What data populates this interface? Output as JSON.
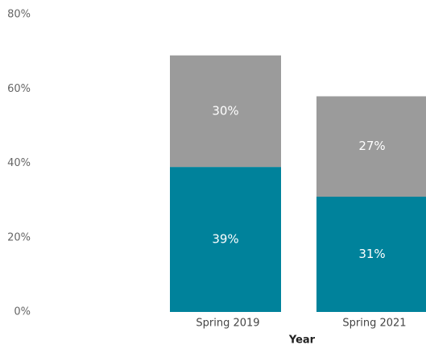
{
  "chart_data": {
    "type": "stacked_bar",
    "x_label": "Year",
    "categories": [
      "Spring 2019",
      "Spring 2021"
    ],
    "series": [
      {
        "color": "#00829b",
        "values": [
          39,
          31
        ],
        "value_labels": [
          "39%",
          "31%"
        ]
      },
      {
        "color": "#9b9b9b",
        "values": [
          30,
          27
        ],
        "value_labels": [
          "30%",
          "27%"
        ]
      }
    ],
    "ylim": [
      0,
      80
    ],
    "yticks": [
      {
        "value": 0,
        "label": "0%"
      },
      {
        "value": 20,
        "label": "20%"
      },
      {
        "value": 40,
        "label": "40%"
      },
      {
        "value": 60,
        "label": "60%"
      },
      {
        "value": 80,
        "label": "80%"
      }
    ],
    "grid": false
  }
}
